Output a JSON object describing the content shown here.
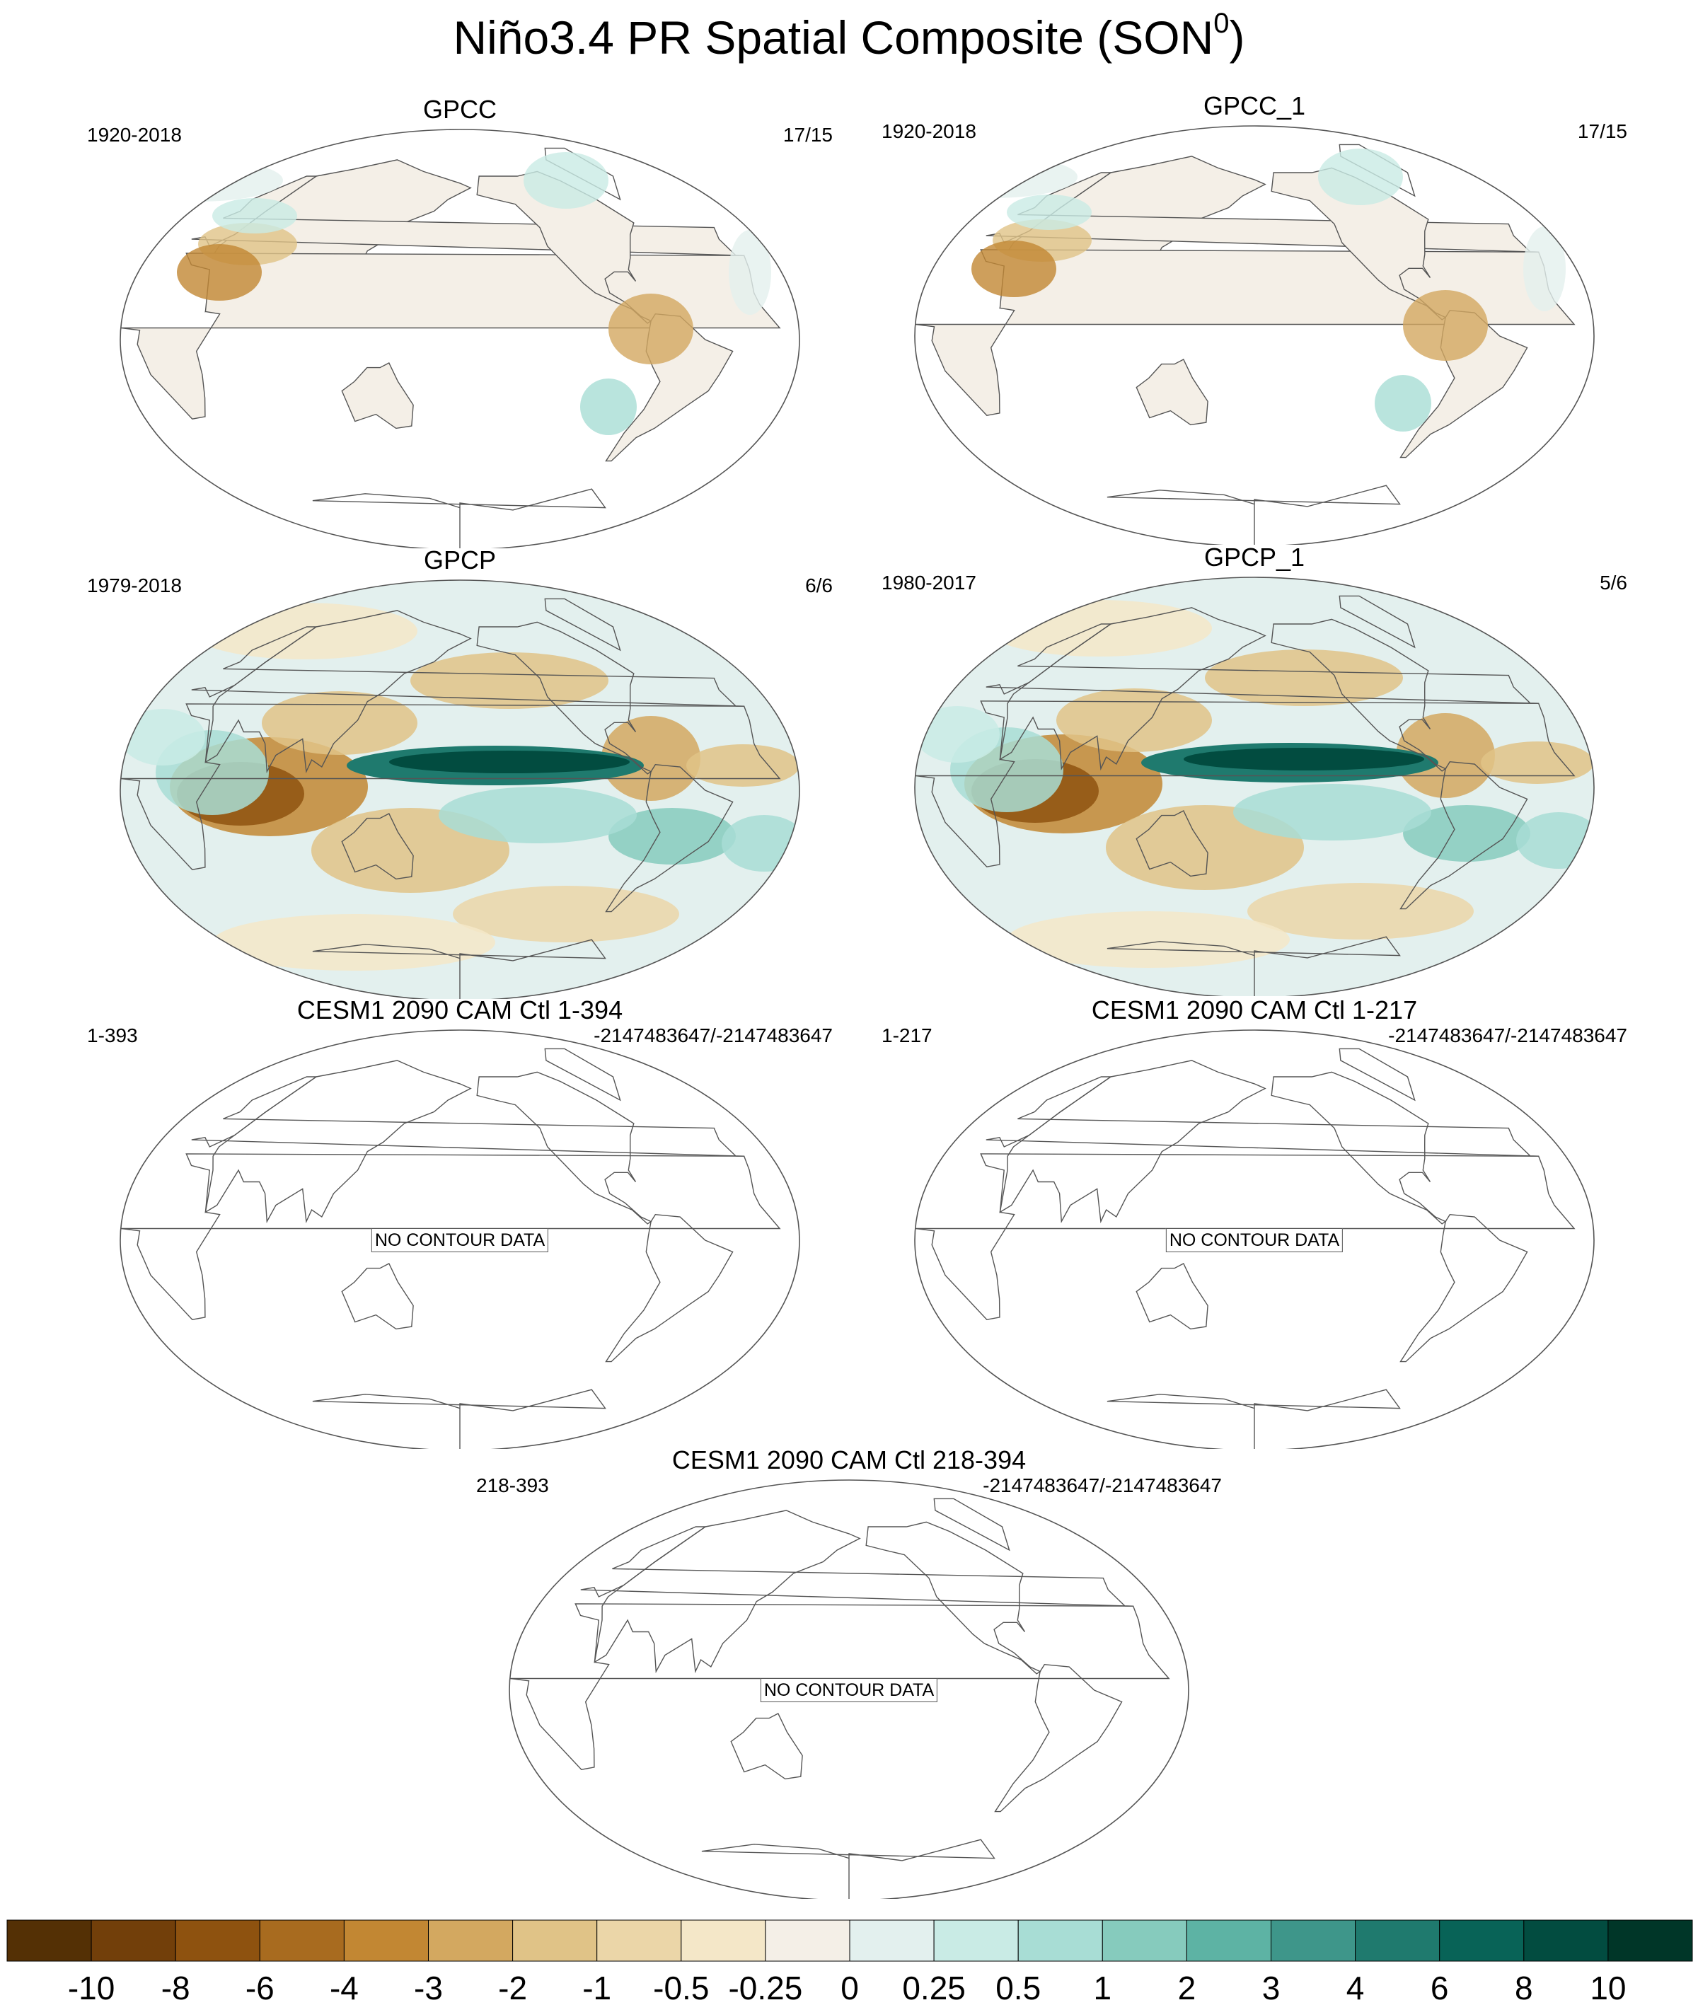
{
  "title": {
    "main": "Niño3.4 PR Spatial Composite (SON",
    "superscript": "0",
    "close": ")"
  },
  "panels": [
    {
      "title": "GPCC",
      "left": "1920-2018",
      "right": "17/15",
      "field": "land"
    },
    {
      "title": "GPCC_1",
      "left": "1920-2018",
      "right": "17/15",
      "field": "land"
    },
    {
      "title": "GPCP",
      "left": "1979-2018",
      "right": "6/6",
      "field": "global"
    },
    {
      "title": "GPCP_1",
      "left": "1980-2017",
      "right": "5/6",
      "field": "global"
    },
    {
      "title": "CESM1 2090 CAM Ctl 1-394",
      "left": "1-393",
      "right": "-2147483647/-2147483647",
      "field": "none",
      "message": "NO CONTOUR DATA"
    },
    {
      "title": "CESM1 2090 CAM Ctl 1-217",
      "left": "1-217",
      "right": "-2147483647/-2147483647",
      "field": "none",
      "message": "NO CONTOUR DATA"
    },
    {
      "title": "CESM1 2090 CAM Ctl 218-394",
      "left": "218-393",
      "right": "-2147483647/-2147483647",
      "field": "none",
      "message": "NO CONTOUR DATA"
    }
  ],
  "colorbar": {
    "labels": [
      "-10",
      "-8",
      "-6",
      "-4",
      "-3",
      "-2",
      "-1",
      "-0.5",
      "-0.25",
      "0",
      "0.25",
      "0.5",
      "1",
      "2",
      "3",
      "4",
      "6",
      "8",
      "10"
    ],
    "colors": [
      "#543005",
      "#723f0a",
      "#8e520f",
      "#a86b1f",
      "#c28733",
      "#d3a860",
      "#e0c387",
      "#ebd6a8",
      "#f4e7c8",
      "#f4efe7",
      "#e3f0ee",
      "#c9ebe5",
      "#a8ddd5",
      "#86cbbd",
      "#5db3a4",
      "#3e968a",
      "#1f7a6e",
      "#086357",
      "#024c40",
      "#003628"
    ]
  }
}
